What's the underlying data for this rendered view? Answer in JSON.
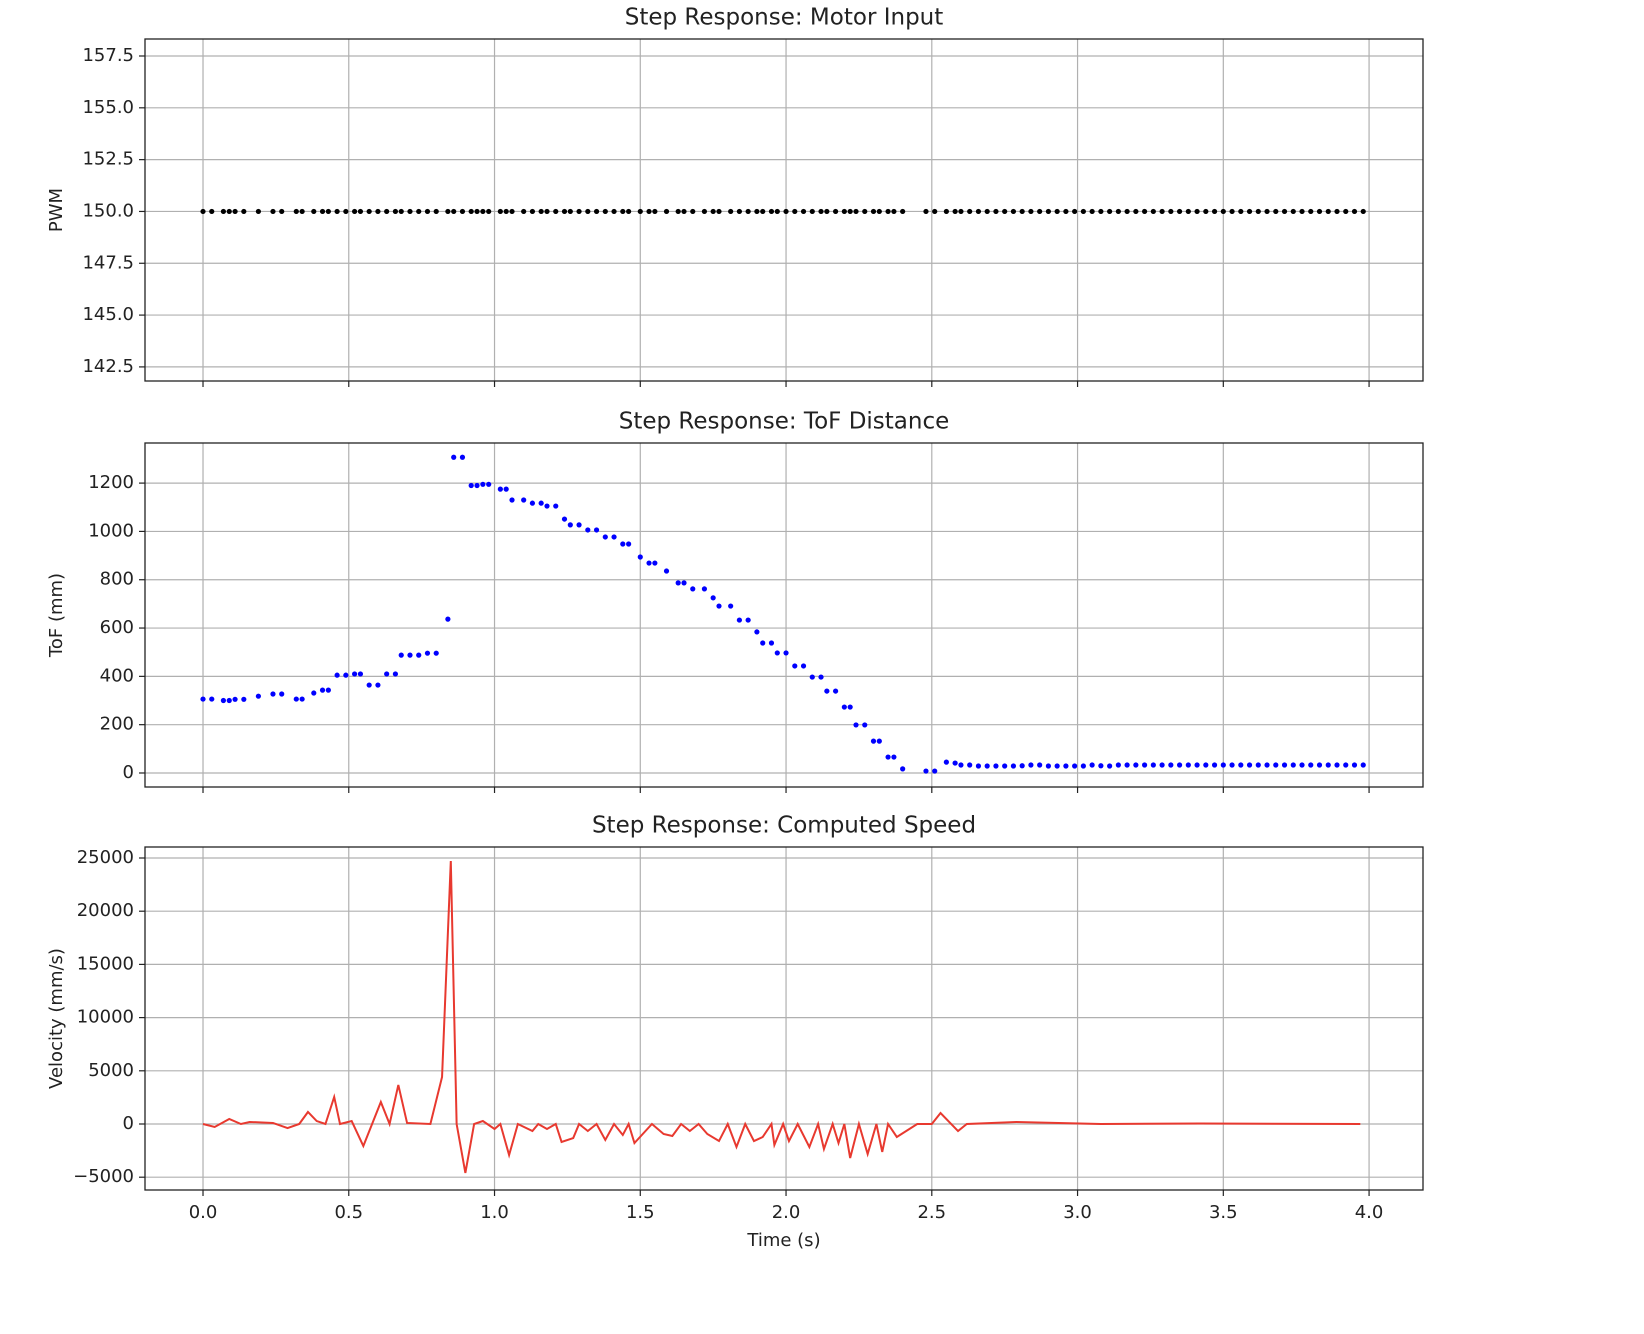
{
  "chart_data": [
    {
      "type": "scatter",
      "title": "Step Response: Motor Input",
      "y_label": "PWM",
      "grid": true,
      "xlim": [
        -0.199,
        4.185
      ],
      "xticks": [
        0,
        0.5,
        1,
        1.5,
        2,
        2.5,
        3,
        3.5,
        4
      ],
      "ylim": [
        141.82,
        158.32
      ],
      "yticks": [
        142.5,
        {
          "value": 145,
          "label": "145.0"
        },
        147.5,
        {
          "value": 150,
          "label": "150.0"
        },
        152.5,
        {
          "value": 155,
          "label": "155.0"
        },
        157.5
      ],
      "series": [
        {
          "name": "PWM",
          "color": "#000000",
          "x": [
            0.0,
            0.03,
            0.07,
            0.09,
            0.11,
            0.14,
            0.19,
            0.24,
            0.27,
            0.32,
            0.34,
            0.38,
            0.41,
            0.43,
            0.46,
            0.49,
            0.52,
            0.54,
            0.57,
            0.6,
            0.63,
            0.66,
            0.68,
            0.71,
            0.74,
            0.77,
            0.8,
            0.84,
            0.86,
            0.89,
            0.92,
            0.94,
            0.96,
            0.98,
            1.02,
            1.04,
            1.06,
            1.1,
            1.13,
            1.16,
            1.18,
            1.21,
            1.24,
            1.26,
            1.29,
            1.32,
            1.35,
            1.38,
            1.41,
            1.44,
            1.46,
            1.5,
            1.53,
            1.55,
            1.59,
            1.63,
            1.65,
            1.68,
            1.72,
            1.75,
            1.77,
            1.81,
            1.84,
            1.87,
            1.9,
            1.92,
            1.95,
            1.97,
            2.0,
            2.03,
            2.06,
            2.09,
            2.12,
            2.14,
            2.17,
            2.2,
            2.22,
            2.24,
            2.27,
            2.3,
            2.32,
            2.35,
            2.37,
            2.4,
            2.48,
            2.51,
            2.55,
            2.58,
            2.6,
            2.63,
            2.66,
            2.69,
            2.72,
            2.75,
            2.78,
            2.81,
            2.84,
            2.87,
            2.9,
            2.93,
            2.96,
            2.99,
            3.02,
            3.05,
            3.08,
            3.11,
            3.14,
            3.17,
            3.2,
            3.23,
            3.26,
            3.29,
            3.32,
            3.35,
            3.38,
            3.41,
            3.44,
            3.47,
            3.5,
            3.53,
            3.56,
            3.59,
            3.62,
            3.65,
            3.68,
            3.71,
            3.74,
            3.77,
            3.8,
            3.83,
            3.86,
            3.89,
            3.92,
            3.95,
            3.98
          ],
          "values": [
            150,
            150,
            150,
            150,
            150,
            150,
            150,
            150,
            150,
            150,
            150,
            150,
            150,
            150,
            150,
            150,
            150,
            150,
            150,
            150,
            150,
            150,
            150,
            150,
            150,
            150,
            150,
            150,
            150,
            150,
            150,
            150,
            150,
            150,
            150,
            150,
            150,
            150,
            150,
            150,
            150,
            150,
            150,
            150,
            150,
            150,
            150,
            150,
            150,
            150,
            150,
            150,
            150,
            150,
            150,
            150,
            150,
            150,
            150,
            150,
            150,
            150,
            150,
            150,
            150,
            150,
            150,
            150,
            150,
            150,
            150,
            150,
            150,
            150,
            150,
            150,
            150,
            150,
            150,
            150,
            150,
            150,
            150,
            150,
            150,
            150,
            150,
            150,
            150,
            150,
            150,
            150,
            150,
            150,
            150,
            150,
            150,
            150,
            150,
            150,
            150,
            150,
            150,
            150,
            150,
            150,
            150,
            150,
            150,
            150,
            150,
            150,
            150,
            150,
            150,
            150,
            150,
            150,
            150,
            150,
            150,
            150,
            150,
            150,
            150,
            150,
            150,
            150,
            150,
            150,
            150,
            150,
            150,
            150,
            150
          ]
        }
      ]
    },
    {
      "type": "scatter",
      "title": "Step Response: ToF Distance",
      "y_label": "ToF (mm)",
      "grid": true,
      "xlim": [
        -0.199,
        4.185
      ],
      "xticks": [
        0,
        0.5,
        1,
        1.5,
        2,
        2.5,
        3,
        3.5,
        4
      ],
      "ylim": [
        -58,
        1366
      ],
      "yticks": [
        0,
        200,
        400,
        600,
        800,
        1000,
        1200
      ],
      "series": [
        {
          "name": "ToF",
          "color": "#0000ff",
          "x": [
            0.0,
            0.03,
            0.07,
            0.09,
            0.11,
            0.14,
            0.19,
            0.24,
            0.27,
            0.32,
            0.34,
            0.38,
            0.41,
            0.43,
            0.46,
            0.49,
            0.52,
            0.54,
            0.57,
            0.6,
            0.63,
            0.66,
            0.68,
            0.71,
            0.74,
            0.77,
            0.8,
            0.84,
            0.86,
            0.89,
            0.92,
            0.94,
            0.96,
            0.98,
            1.02,
            1.04,
            1.06,
            1.1,
            1.13,
            1.16,
            1.18,
            1.21,
            1.24,
            1.26,
            1.29,
            1.32,
            1.35,
            1.38,
            1.41,
            1.44,
            1.46,
            1.5,
            1.53,
            1.55,
            1.59,
            1.63,
            1.65,
            1.68,
            1.72,
            1.75,
            1.77,
            1.81,
            1.84,
            1.87,
            1.9,
            1.92,
            1.95,
            1.97,
            2.0,
            2.03,
            2.06,
            2.09,
            2.12,
            2.14,
            2.17,
            2.2,
            2.22,
            2.24,
            2.27,
            2.3,
            2.32,
            2.35,
            2.37,
            2.4,
            2.48,
            2.51,
            2.55,
            2.58,
            2.6,
            2.63,
            2.66,
            2.69,
            2.72,
            2.75,
            2.78,
            2.81,
            2.84,
            2.87,
            2.9,
            2.93,
            2.96,
            2.99,
            3.02,
            3.05,
            3.08,
            3.11,
            3.14,
            3.17,
            3.2,
            3.23,
            3.26,
            3.29,
            3.32,
            3.35,
            3.38,
            3.41,
            3.44,
            3.47,
            3.5,
            3.53,
            3.56,
            3.59,
            3.62,
            3.65,
            3.68,
            3.71,
            3.74,
            3.77,
            3.8,
            3.83,
            3.86,
            3.89,
            3.92,
            3.95,
            3.98
          ],
          "values": [
            306,
            306,
            300,
            300,
            305,
            305,
            318,
            327,
            327,
            306,
            306,
            331,
            343,
            343,
            405,
            405,
            410,
            410,
            364,
            364,
            410,
            410,
            488,
            488,
            488,
            496,
            496,
            637,
            1307,
            1307,
            1190,
            1190,
            1195,
            1195,
            1175,
            1175,
            1130,
            1130,
            1117,
            1117,
            1105,
            1105,
            1051,
            1027,
            1027,
            1006,
            1006,
            977,
            977,
            948,
            948,
            894,
            869,
            869,
            836,
            787,
            787,
            762,
            762,
            725,
            691,
            691,
            633,
            633,
            584,
            538,
            538,
            497,
            497,
            443,
            443,
            397,
            397,
            339,
            339,
            273,
            273,
            199,
            199,
            132,
            132,
            66,
            66,
            17,
            8,
            8,
            45,
            41,
            33,
            33,
            29,
            29,
            29,
            29,
            29,
            30,
            33,
            33,
            29,
            29,
            29,
            29,
            29,
            33,
            30,
            29,
            33,
            33,
            33,
            33,
            33,
            33,
            33,
            33,
            33,
            33,
            33,
            33,
            33,
            33,
            33,
            33,
            33,
            33,
            33,
            33,
            33,
            33,
            33,
            33,
            33,
            33,
            33,
            33,
            33
          ]
        }
      ]
    },
    {
      "type": "line",
      "title": "Step Response: Computed Speed",
      "x_label": "Time (s)",
      "y_label": "Velocity (mm/s)",
      "grid": true,
      "xlim": [
        -0.199,
        4.185
      ],
      "xticks": [
        {
          "value": 0,
          "label": "0.0"
        },
        0.5,
        {
          "value": 1,
          "label": "1.0"
        },
        1.5,
        {
          "value": 2,
          "label": "2.0"
        },
        2.5,
        {
          "value": 3,
          "label": "3.0"
        },
        3.5,
        {
          "value": 4,
          "label": "4.0"
        }
      ],
      "ylim": [
        -6203,
        26034
      ],
      "yticks": [
        {
          "value": -5000,
          "label": "−5000"
        },
        0,
        5000,
        10000,
        15000,
        20000,
        25000
      ],
      "series": [
        {
          "name": "Velocity",
          "color": "#e8392f",
          "x": [
            0.0,
            0.04,
            0.09,
            0.13,
            0.16,
            0.24,
            0.29,
            0.33,
            0.36,
            0.39,
            0.42,
            0.45,
            0.47,
            0.51,
            0.55,
            0.61,
            0.64,
            0.67,
            0.7,
            0.78,
            0.82,
            0.85,
            0.87,
            0.9,
            0.93,
            0.96,
            1.0,
            1.02,
            1.05,
            1.08,
            1.13,
            1.15,
            1.18,
            1.21,
            1.23,
            1.27,
            1.29,
            1.32,
            1.35,
            1.38,
            1.41,
            1.44,
            1.46,
            1.48,
            1.54,
            1.58,
            1.61,
            1.64,
            1.67,
            1.7,
            1.73,
            1.77,
            1.8,
            1.83,
            1.86,
            1.89,
            1.92,
            1.95,
            1.96,
            1.99,
            2.01,
            2.04,
            2.08,
            2.11,
            2.13,
            2.16,
            2.18,
            2.2,
            2.22,
            2.25,
            2.28,
            2.31,
            2.33,
            2.35,
            2.38,
            2.45,
            2.5,
            2.53,
            2.59,
            2.62,
            2.79,
            3.08,
            3.42,
            3.97
          ],
          "values": [
            0,
            -280,
            470,
            0,
            190,
            100,
            -380,
            0,
            1130,
            280,
            0,
            2540,
            0,
            280,
            -2070,
            2070,
            0,
            3670,
            100,
            0,
            4420,
            24720,
            0,
            -4600,
            0,
            280,
            -470,
            0,
            -2920,
            0,
            -660,
            0,
            -470,
            0,
            -1690,
            -1320,
            0,
            -660,
            0,
            -1500,
            0,
            -1030,
            0,
            -1790,
            0,
            -940,
            -1130,
            0,
            -660,
            0,
            -940,
            -1600,
            0,
            -2160,
            0,
            -1600,
            -1220,
            0,
            -1970,
            0,
            -1600,
            0,
            -2160,
            0,
            -2350,
            0,
            -1790,
            0,
            -3200,
            0,
            -2820,
            0,
            -2630,
            0,
            -1220,
            0,
            0,
            1030,
            -660,
            0,
            190,
            0,
            50,
            0
          ]
        }
      ]
    }
  ]
}
